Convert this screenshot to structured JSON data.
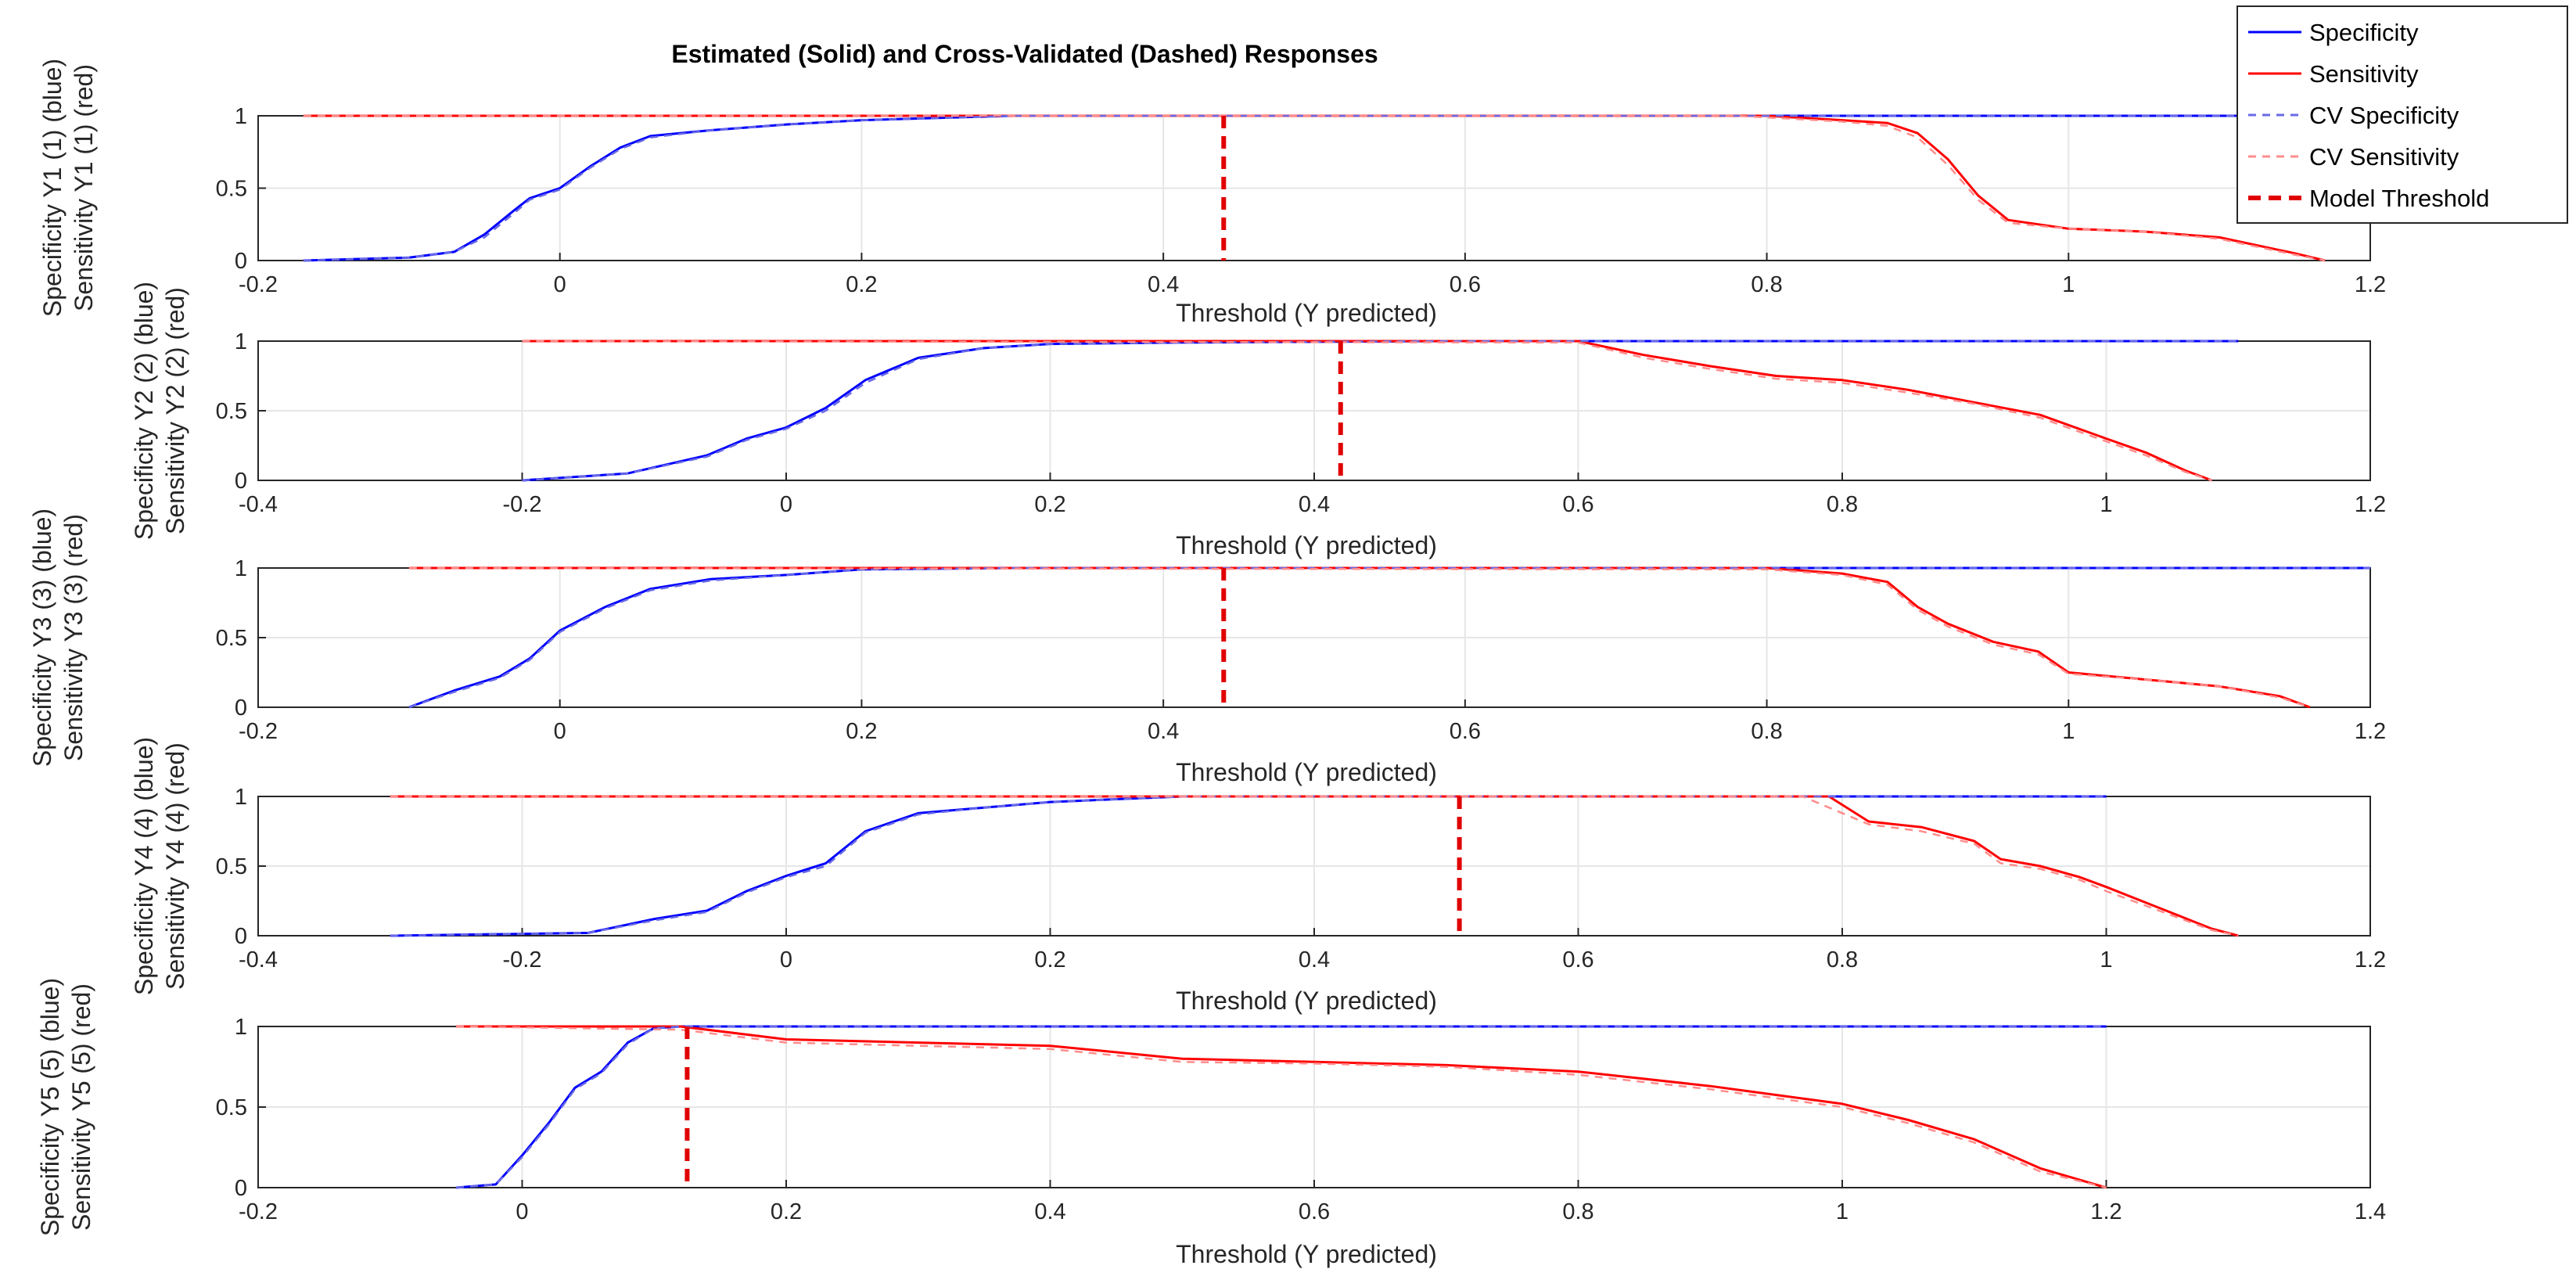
{
  "figure": {
    "title": "Estimated (Solid) and Cross-Validated (Dashed) Responses",
    "xlabel": "Threshold (Y predicted)",
    "legend": {
      "placement": "top-right",
      "entries": [
        {
          "label": "Specificity",
          "color": "#0000ff",
          "style": "solid"
        },
        {
          "label": "Sensitivity",
          "color": "#ff0000",
          "style": "solid"
        },
        {
          "label": "CV Specificity",
          "color": "#6a6ae6",
          "style": "dashed"
        },
        {
          "label": "CV Sensitivity",
          "color": "#ff8c8c",
          "style": "dashed"
        },
        {
          "label": "Model Threshold",
          "color": "#e00000",
          "style": "thick-dashed"
        }
      ]
    }
  },
  "colors": {
    "specificity": "#0000ff",
    "sensitivity": "#ff0000",
    "cv_specificity": "#6a6ae6",
    "cv_sensitivity": "#ff8c8c",
    "threshold": "#e00000"
  },
  "chart_data": [
    {
      "type": "line",
      "ylabel_lines": [
        "Specificity Y1 (1) (blue)",
        "Sensitivity Y1 (1) (red)"
      ],
      "xlabel": "Threshold (Y predicted)",
      "xlim": [
        -0.2,
        1.2
      ],
      "ylim": [
        0,
        1
      ],
      "xticks": [
        "-0.2",
        "0",
        "0.2",
        "0.4",
        "0.6",
        "0.8",
        "1",
        "1.2"
      ],
      "yticks": [
        "0",
        "0.5",
        "1"
      ],
      "grid": true,
      "threshold": 0.44,
      "series": [
        {
          "name": "Specificity",
          "x": [
            -0.17,
            -0.1,
            -0.07,
            -0.05,
            -0.03,
            -0.02,
            0,
            0.02,
            0.04,
            0.06,
            0.1,
            0.15,
            0.2,
            0.3,
            1.2
          ],
          "y": [
            0,
            0.02,
            0.06,
            0.18,
            0.35,
            0.43,
            0.5,
            0.65,
            0.78,
            0.86,
            0.9,
            0.94,
            0.97,
            1,
            1
          ]
        },
        {
          "name": "Sensitivity",
          "x": [
            -0.17,
            0.8,
            0.85,
            0.88,
            0.9,
            0.92,
            0.94,
            0.96,
            1,
            1.05,
            1.1,
            1.15,
            1.17
          ],
          "y": [
            1,
            1,
            0.97,
            0.95,
            0.88,
            0.7,
            0.45,
            0.28,
            0.22,
            0.2,
            0.16,
            0.05,
            0
          ]
        },
        {
          "name": "CV Specificity",
          "x": [
            -0.17,
            -0.1,
            -0.07,
            -0.05,
            -0.03,
            -0.02,
            0,
            0.02,
            0.04,
            0.06,
            0.1,
            0.15,
            0.2,
            0.3,
            1.2
          ],
          "y": [
            0,
            0.02,
            0.06,
            0.16,
            0.33,
            0.42,
            0.49,
            0.64,
            0.77,
            0.85,
            0.9,
            0.94,
            0.97,
            1,
            1
          ]
        },
        {
          "name": "CV Sensitivity",
          "x": [
            -0.17,
            0.78,
            0.85,
            0.88,
            0.9,
            0.92,
            0.94,
            0.96,
            1,
            1.05,
            1.1,
            1.15,
            1.17
          ],
          "y": [
            1,
            1,
            0.96,
            0.93,
            0.85,
            0.66,
            0.42,
            0.26,
            0.22,
            0.2,
            0.15,
            0.04,
            0
          ]
        }
      ]
    },
    {
      "type": "line",
      "ylabel_lines": [
        "Specificity Y2 (2) (blue)",
        "Sensitivity Y2 (2) (red)"
      ],
      "xlabel": "Threshold (Y predicted)",
      "xlim": [
        -0.4,
        1.2
      ],
      "ylim": [
        0,
        1
      ],
      "xticks": [
        "-0.4",
        "-0.2",
        "0",
        "0.2",
        "0.4",
        "0.6",
        "0.8",
        "1",
        "1.2"
      ],
      "yticks": [
        "0",
        "0.5",
        "1"
      ],
      "grid": true,
      "threshold": 0.42,
      "series": [
        {
          "name": "Specificity",
          "x": [
            -0.2,
            -0.12,
            -0.06,
            -0.03,
            0,
            0.03,
            0.06,
            0.1,
            0.15,
            0.2,
            0.3,
            0.5,
            1.1
          ],
          "y": [
            0,
            0.05,
            0.18,
            0.3,
            0.38,
            0.52,
            0.72,
            0.88,
            0.95,
            0.98,
            0.99,
            1,
            1
          ]
        },
        {
          "name": "Sensitivity",
          "x": [
            -0.2,
            0.6,
            0.65,
            0.7,
            0.75,
            0.8,
            0.85,
            0.9,
            0.95,
            1,
            1.03,
            1.06,
            1.08
          ],
          "y": [
            1,
            1,
            0.9,
            0.82,
            0.75,
            0.72,
            0.65,
            0.56,
            0.47,
            0.3,
            0.2,
            0.07,
            0
          ]
        },
        {
          "name": "CV Specificity",
          "x": [
            -0.2,
            -0.12,
            -0.06,
            -0.03,
            0,
            0.03,
            0.06,
            0.1,
            0.15,
            0.2,
            0.3,
            0.5,
            1.1
          ],
          "y": [
            0,
            0.05,
            0.17,
            0.29,
            0.37,
            0.5,
            0.7,
            0.87,
            0.95,
            0.98,
            0.99,
            1,
            1
          ]
        },
        {
          "name": "CV Sensitivity",
          "x": [
            -0.2,
            0.6,
            0.65,
            0.7,
            0.75,
            0.8,
            0.85,
            0.9,
            0.95,
            1,
            1.03,
            1.06,
            1.08
          ],
          "y": [
            1,
            0.99,
            0.88,
            0.8,
            0.73,
            0.7,
            0.63,
            0.55,
            0.45,
            0.28,
            0.18,
            0.06,
            0
          ]
        }
      ]
    },
    {
      "type": "line",
      "ylabel_lines": [
        "Specificity Y3 (3) (blue)",
        "Sensitivity Y3 (3) (red)"
      ],
      "xlabel": "Threshold (Y predicted)",
      "xlim": [
        -0.2,
        1.2
      ],
      "ylim": [
        0,
        1
      ],
      "xticks": [
        "-0.2",
        "0",
        "0.2",
        "0.4",
        "0.6",
        "0.8",
        "1",
        "1.2"
      ],
      "yticks": [
        "0",
        "0.5",
        "1"
      ],
      "grid": true,
      "threshold": 0.44,
      "series": [
        {
          "name": "Specificity",
          "x": [
            -0.1,
            -0.07,
            -0.04,
            -0.02,
            0,
            0.03,
            0.06,
            0.1,
            0.15,
            0.2,
            0.3,
            1.2
          ],
          "y": [
            0,
            0.12,
            0.22,
            0.35,
            0.55,
            0.72,
            0.85,
            0.92,
            0.95,
            0.99,
            1,
            1
          ]
        },
        {
          "name": "Sensitivity",
          "x": [
            -0.1,
            0.8,
            0.85,
            0.88,
            0.9,
            0.92,
            0.95,
            0.98,
            1,
            1.05,
            1.1,
            1.14,
            1.16
          ],
          "y": [
            1,
            1,
            0.96,
            0.9,
            0.72,
            0.6,
            0.47,
            0.4,
            0.25,
            0.2,
            0.15,
            0.08,
            0
          ]
        },
        {
          "name": "CV Specificity",
          "x": [
            -0.1,
            -0.07,
            -0.04,
            -0.02,
            0,
            0.03,
            0.06,
            0.1,
            0.15,
            0.2,
            0.3,
            1.2
          ],
          "y": [
            0,
            0.11,
            0.21,
            0.34,
            0.54,
            0.71,
            0.84,
            0.91,
            0.95,
            0.99,
            1,
            1
          ]
        },
        {
          "name": "CV Sensitivity",
          "x": [
            -0.1,
            0.8,
            0.85,
            0.88,
            0.9,
            0.92,
            0.95,
            0.98,
            1,
            1.05,
            1.1,
            1.14,
            1.16
          ],
          "y": [
            1,
            0.99,
            0.95,
            0.88,
            0.7,
            0.58,
            0.45,
            0.38,
            0.24,
            0.2,
            0.15,
            0.07,
            0
          ]
        }
      ]
    },
    {
      "type": "line",
      "ylabel_lines": [
        "Specificity Y4 (4) (blue)",
        "Sensitivity Y4 (4) (red)"
      ],
      "xlabel": "Threshold (Y predicted)",
      "xlim": [
        -0.4,
        1.2
      ],
      "ylim": [
        0,
        1
      ],
      "xticks": [
        "-0.4",
        "-0.2",
        "0",
        "0.2",
        "0.4",
        "0.6",
        "0.8",
        "1",
        "1.2"
      ],
      "yticks": [
        "0",
        "0.5",
        "1"
      ],
      "grid": true,
      "threshold": 0.51,
      "series": [
        {
          "name": "Specificity",
          "x": [
            -0.3,
            -0.15,
            -0.1,
            -0.06,
            -0.03,
            0,
            0.03,
            0.06,
            0.1,
            0.15,
            0.2,
            0.3,
            1.0
          ],
          "y": [
            0,
            0.02,
            0.12,
            0.18,
            0.32,
            0.43,
            0.52,
            0.75,
            0.88,
            0.92,
            0.96,
            1,
            1
          ]
        },
        {
          "name": "Sensitivity",
          "x": [
            -0.3,
            0.79,
            0.82,
            0.86,
            0.9,
            0.92,
            0.95,
            0.98,
            1,
            1.04,
            1.08,
            1.1
          ],
          "y": [
            1,
            1,
            0.82,
            0.78,
            0.68,
            0.55,
            0.5,
            0.42,
            0.35,
            0.2,
            0.05,
            0
          ]
        },
        {
          "name": "CV Specificity",
          "x": [
            -0.3,
            -0.15,
            -0.1,
            -0.06,
            -0.03,
            0,
            0.03,
            0.06,
            0.1,
            0.15,
            0.2,
            0.3,
            1.0
          ],
          "y": [
            0,
            0.02,
            0.11,
            0.17,
            0.31,
            0.42,
            0.5,
            0.74,
            0.87,
            0.92,
            0.96,
            1,
            1
          ]
        },
        {
          "name": "CV Sensitivity",
          "x": [
            -0.3,
            0.77,
            0.82,
            0.86,
            0.9,
            0.92,
            0.95,
            0.98,
            1,
            1.04,
            1.08,
            1.1
          ],
          "y": [
            1,
            1,
            0.8,
            0.75,
            0.66,
            0.52,
            0.48,
            0.4,
            0.32,
            0.18,
            0.04,
            0
          ]
        }
      ]
    },
    {
      "type": "line",
      "ylabel_lines": [
        "Specificity Y5 (5) (blue)",
        "Sensitivity Y5 (5) (red)"
      ],
      "xlabel": "Threshold (Y predicted)",
      "xlim": [
        -0.2,
        1.4
      ],
      "ylim": [
        0,
        1
      ],
      "xticks": [
        "-0.2",
        "0",
        "0.2",
        "0.4",
        "0.6",
        "0.8",
        "1",
        "1.2",
        "1.4"
      ],
      "yticks": [
        "0",
        "0.5",
        "1"
      ],
      "grid": true,
      "threshold": 0.125,
      "series": [
        {
          "name": "Specificity",
          "x": [
            -0.05,
            -0.02,
            0,
            0.02,
            0.04,
            0.06,
            0.08,
            0.1,
            0.12,
            1.2
          ],
          "y": [
            0,
            0.02,
            0.2,
            0.4,
            0.62,
            0.72,
            0.9,
            0.99,
            1,
            1
          ]
        },
        {
          "name": "Sensitivity",
          "x": [
            -0.05,
            0.12,
            0.2,
            0.3,
            0.4,
            0.5,
            0.6,
            0.7,
            0.8,
            0.9,
            1,
            1.05,
            1.1,
            1.15,
            1.2
          ],
          "y": [
            1,
            1,
            0.92,
            0.9,
            0.88,
            0.8,
            0.78,
            0.76,
            0.72,
            0.63,
            0.52,
            0.42,
            0.3,
            0.12,
            0
          ]
        },
        {
          "name": "CV Specificity",
          "x": [
            -0.05,
            -0.02,
            0,
            0.02,
            0.04,
            0.06,
            0.08,
            0.1,
            0.12,
            1.2
          ],
          "y": [
            0,
            0.02,
            0.19,
            0.39,
            0.61,
            0.71,
            0.89,
            0.99,
            1,
            1
          ]
        },
        {
          "name": "CV Sensitivity",
          "x": [
            -0.05,
            0.12,
            0.2,
            0.3,
            0.4,
            0.5,
            0.6,
            0.7,
            0.8,
            0.9,
            1,
            1.05,
            1.1,
            1.15,
            1.2
          ],
          "y": [
            1,
            0.98,
            0.9,
            0.88,
            0.86,
            0.78,
            0.77,
            0.75,
            0.7,
            0.61,
            0.5,
            0.4,
            0.28,
            0.1,
            0
          ]
        }
      ]
    }
  ]
}
